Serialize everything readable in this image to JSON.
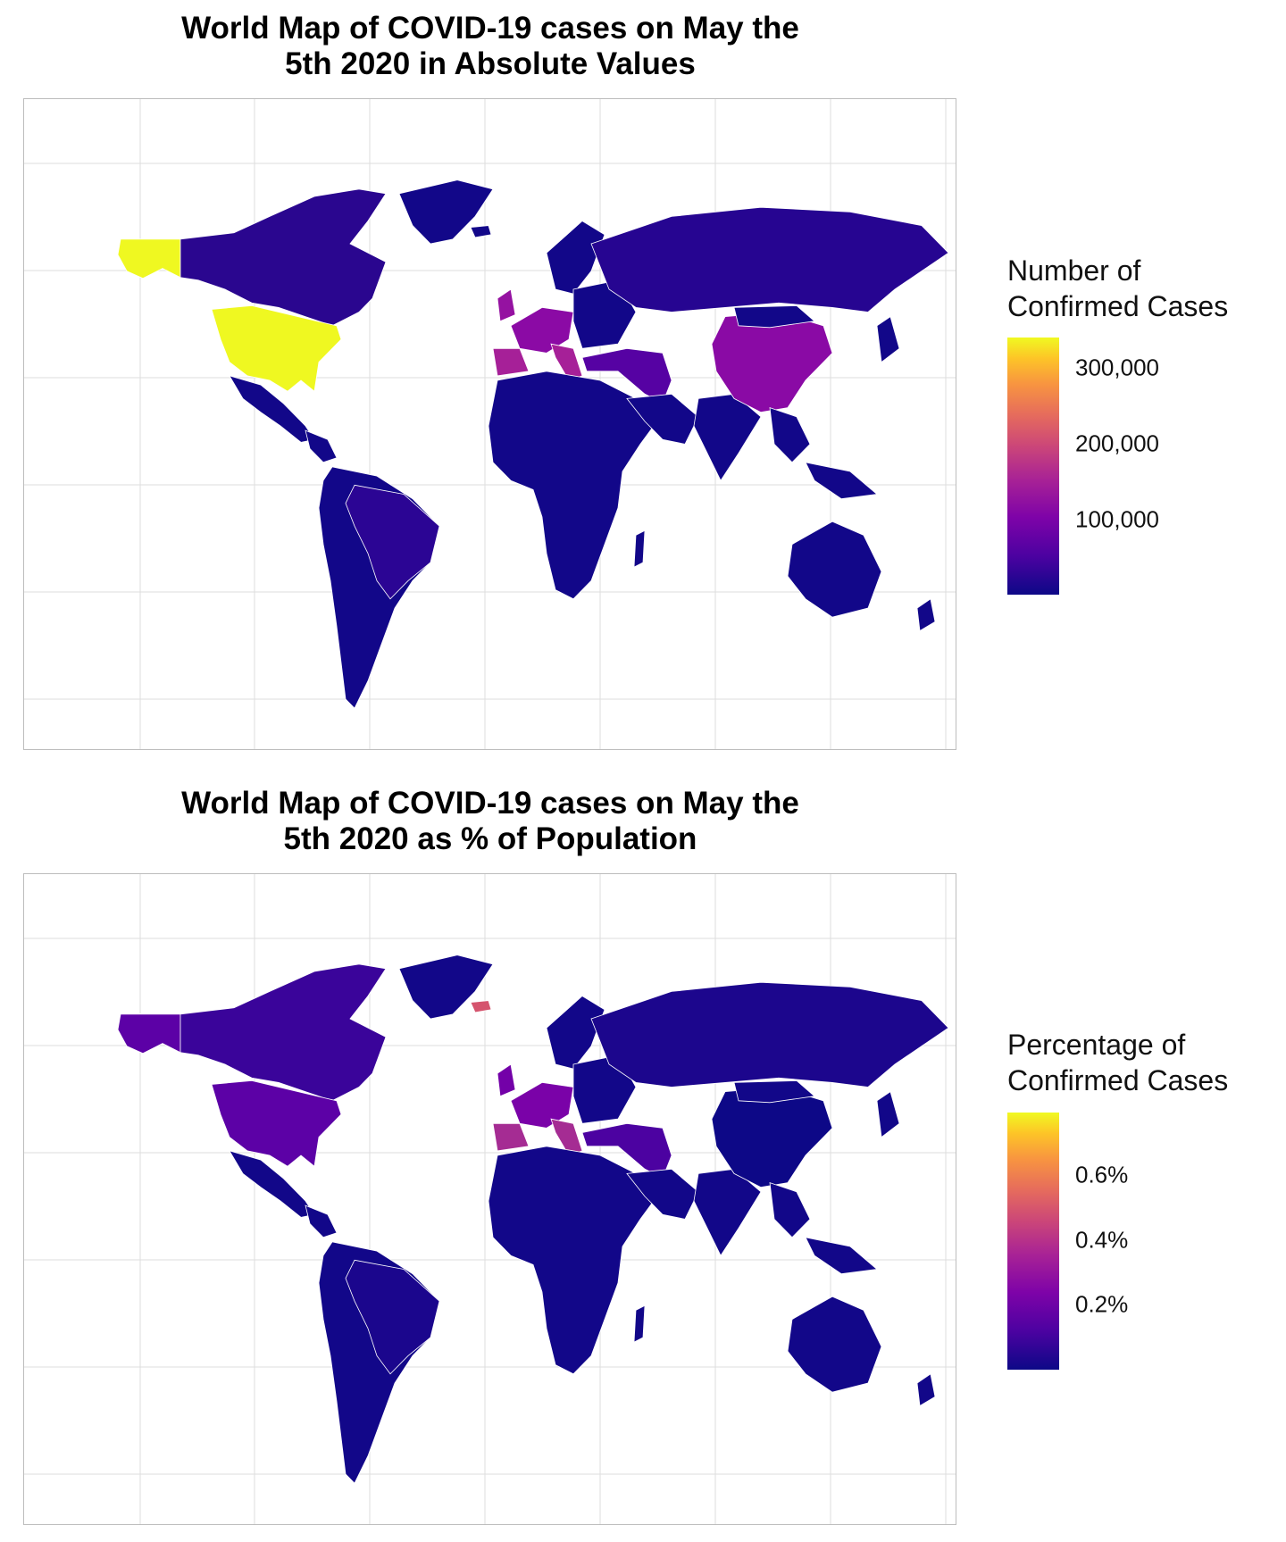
{
  "maps": [
    {
      "title_line1": "World Map of COVID-19 cases on May the",
      "title_line2": "5th 2020 in Absolute Values",
      "legend": {
        "title_line1": "Number of",
        "title_line2": "Confirmed Cases",
        "scale": "plasma",
        "min": 0,
        "max": 350000,
        "ticks": [
          {
            "value": 100000,
            "label": "100,000"
          },
          {
            "value": 200000,
            "label": "200,000"
          },
          {
            "value": 300000,
            "label": "300,000"
          }
        ]
      },
      "fills": {
        "default": "#120789",
        "usa": "#eff821",
        "alaska": "#eff821",
        "canada": "#2a068f",
        "china": "#8a0aa5",
        "russia": "#260591",
        "france_germany": "#8b0aa5",
        "spain_italy": "#a62098",
        "uk": "#9512a1",
        "turkey_iran": "#5602a3",
        "brazil": "#2b0594"
      }
    },
    {
      "title_line1": "World Map of COVID-19 cases on May the",
      "title_line2": "5th 2020 as % of Population",
      "legend": {
        "title_line1": "Percentage of",
        "title_line2": "Confirmed Cases",
        "scale": "plasma",
        "min": 0,
        "max": 0.8,
        "ticks": [
          {
            "value": 0.2,
            "label": "0.2%"
          },
          {
            "value": 0.4,
            "label": "0.4%"
          },
          {
            "value": 0.6,
            "label": "0.6%"
          }
        ]
      },
      "fills": {
        "default": "#120789",
        "usa": "#5c01a6",
        "alaska": "#5c01a6",
        "canada": "#3a049a",
        "china": "#0d0887",
        "russia": "#1c068d",
        "france_germany": "#7a02a8",
        "spain_italy": "#a52c93",
        "uk": "#7301a8",
        "iceland": "#d5546e",
        "turkey_iran": "#4c02a1",
        "brazil": "#1b068d"
      }
    }
  ]
}
